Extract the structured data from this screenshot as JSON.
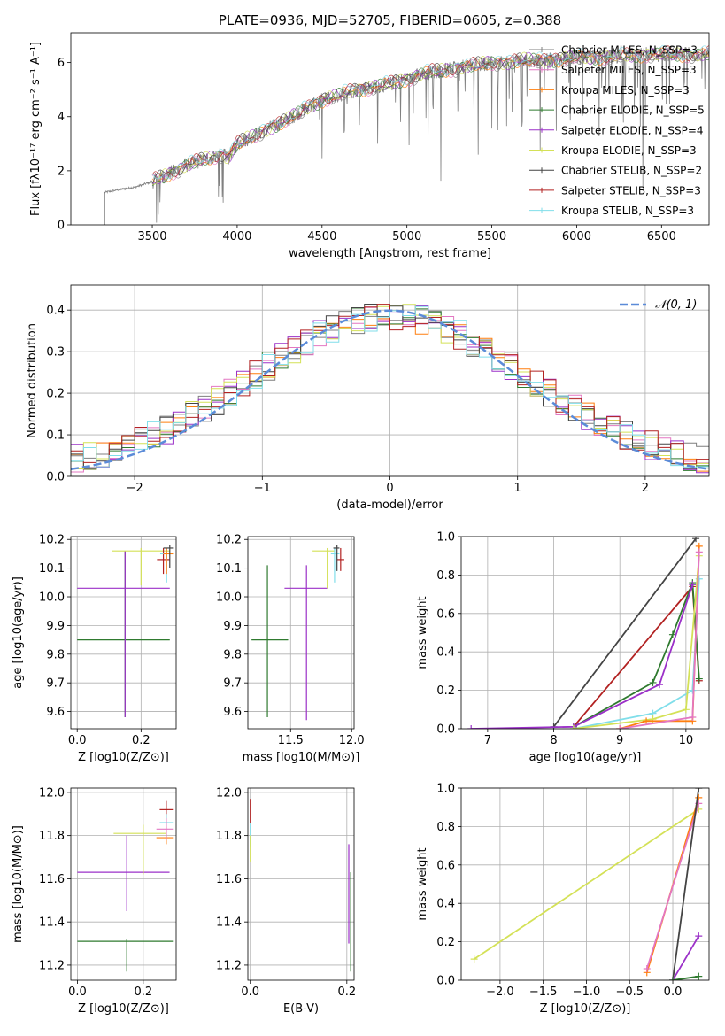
{
  "colors": {
    "Chabrier MILES": "#7f7f7f",
    "Salpeter MILES": "#e377c2",
    "Kroupa MILES": "#ff7f0e",
    "Chabrier ELODIE": "#2f7a2f",
    "Salpeter ELODIE": "#9b30c8",
    "Kroupa ELODIE": "#d4e157",
    "Chabrier STELIB": "#444444",
    "Salpeter STELIB": "#b22222",
    "Kroupa STELIB": "#80deea",
    "normal": "#5b8bd8"
  },
  "chart_data": [
    {
      "type": "line",
      "title": "PLATE=0936, MJD=52705, FIBERID=0605, z=0.388",
      "xlabel": "wavelength [Angstrom, rest frame]",
      "ylabel": "Flux [fλ10⁻¹⁷ erg cm⁻² s⁻¹ A⁻¹]",
      "xlim": [
        3020,
        6780
      ],
      "ylim": [
        0,
        7.1
      ],
      "xticks": [
        3500,
        4000,
        4500,
        5000,
        5500,
        6000,
        6500
      ],
      "yticks": [
        0,
        2,
        4,
        6
      ],
      "legend_position": "right",
      "legend": [
        "Chabrier MILES, N_SSP=3",
        "Salpeter MILES, N_SSP=3",
        "Kroupa MILES, N_SSP=3",
        "Chabrier ELODIE, N_SSP=5",
        "Salpeter ELODIE, N_SSP=4",
        "Kroupa ELODIE, N_SSP=3",
        "Chabrier STELIB, N_SSP=2",
        "Salpeter STELIB, N_SSP=3",
        "Kroupa STELIB, N_SSP=3"
      ],
      "spectrum_start": 3220,
      "continuum": {
        "x": [
          3220,
          3300,
          3400,
          3500,
          3600,
          3700,
          3800,
          3900,
          3950,
          4000,
          4100,
          4200,
          4300,
          4400,
          4500,
          4600,
          4700,
          4800,
          4900,
          5000,
          5100,
          5200,
          5300,
          5400,
          5500,
          5600,
          5700,
          5800,
          5900,
          6000,
          6200,
          6400,
          6600
        ],
        "y": [
          1.2,
          1.3,
          1.4,
          1.6,
          1.9,
          2.2,
          2.4,
          2.6,
          2.5,
          3.0,
          3.3,
          3.6,
          3.9,
          4.3,
          4.6,
          4.8,
          5.0,
          5.1,
          5.2,
          5.4,
          5.6,
          5.7,
          5.8,
          5.9,
          6.0,
          6.0,
          6.1,
          6.1,
          6.1,
          6.2,
          6.2,
          6.3,
          6.3
        ]
      }
    },
    {
      "type": "step",
      "xlabel": "(data-model)/error",
      "ylabel": "Normed distribution",
      "xlim": [
        -2.5,
        2.5
      ],
      "ylim": [
        0,
        0.46
      ],
      "xticks": [
        -2,
        -1,
        0,
        1,
        2
      ],
      "xtick_labels": [
        "−2",
        "−1",
        "0",
        "1",
        "2"
      ],
      "yticks": [
        0,
        0.1,
        0.2,
        0.3,
        0.4
      ],
      "legend": [
        "𝒩(0, 1)"
      ],
      "legend_position": "top-right",
      "curve": "normal(0,1)"
    },
    {
      "type": "scatter",
      "xlabel": "Z [log10(Z/Z⊙)]",
      "ylabel": "age  [log10(age/yr)]",
      "xlim": [
        -0.02,
        0.31
      ],
      "ylim": [
        9.54,
        10.21
      ],
      "xticks": [
        0.0,
        0.2
      ],
      "yticks": [
        9.6,
        9.7,
        9.8,
        9.9,
        10.0,
        10.1,
        10.2
      ],
      "points": [
        {
          "series": "Chabrier ELODIE",
          "x": 0.15,
          "y": 9.85,
          "xerr": [
            0.0,
            0.29
          ],
          "yerr": [
            9.58,
            10.16
          ]
        },
        {
          "series": "Salpeter ELODIE",
          "x": 0.15,
          "y": 10.03,
          "xerr": [
            0.0,
            0.29
          ],
          "yerr": [
            9.58,
            10.16
          ]
        },
        {
          "series": "Kroupa ELODIE",
          "x": 0.2,
          "y": 10.16,
          "xerr": [
            0.11,
            0.29
          ],
          "yerr": [
            10.04,
            10.17
          ]
        },
        {
          "series": "Salpeter STELIB",
          "x": 0.27,
          "y": 10.13,
          "xerr": [
            0.25,
            0.29
          ],
          "yerr": [
            10.08,
            10.17
          ]
        },
        {
          "series": "Kroupa STELIB",
          "x": 0.28,
          "y": 10.15,
          "xerr": [
            0.26,
            0.3
          ],
          "yerr": [
            10.05,
            10.17
          ]
        },
        {
          "series": "Kroupa MILES",
          "x": 0.28,
          "y": 10.15,
          "xerr": [
            0.27,
            0.3
          ],
          "yerr": [
            10.08,
            10.17
          ]
        },
        {
          "series": "Chabrier STELIB",
          "x": 0.29,
          "y": 10.17,
          "xerr": [
            0.27,
            0.3
          ],
          "yerr": [
            10.1,
            10.18
          ]
        }
      ]
    },
    {
      "type": "scatter",
      "xlabel": "mass [log10(M/M⊙)]",
      "ylabel": "",
      "xlim": [
        11.15,
        12.02
      ],
      "ylim": [
        9.54,
        10.21
      ],
      "xticks": [
        11.5,
        12.0
      ],
      "yticks": [
        9.6,
        9.7,
        9.8,
        9.9,
        10.0,
        10.1,
        10.2
      ],
      "points": [
        {
          "series": "Chabrier ELODIE",
          "x": 11.31,
          "y": 9.85,
          "xerr": [
            11.18,
            11.48
          ],
          "yerr": [
            9.58,
            10.11
          ]
        },
        {
          "series": "Salpeter ELODIE",
          "x": 11.63,
          "y": 10.03,
          "xerr": [
            11.45,
            11.8
          ],
          "yerr": [
            9.57,
            10.11
          ]
        },
        {
          "series": "Kroupa ELODIE",
          "x": 11.8,
          "y": 10.16,
          "xerr": [
            11.68,
            11.86
          ],
          "yerr": [
            10.03,
            10.17
          ]
        },
        {
          "series": "Salpeter STELIB",
          "x": 11.91,
          "y": 10.13,
          "xerr": [
            11.88,
            11.94
          ],
          "yerr": [
            10.09,
            10.17
          ]
        },
        {
          "series": "Kroupa STELIB",
          "x": 11.86,
          "y": 10.15,
          "xerr": [
            11.83,
            11.9
          ],
          "yerr": [
            10.05,
            10.17
          ]
        },
        {
          "series": "Chabrier STELIB",
          "x": 11.88,
          "y": 10.17,
          "xerr": [
            11.85,
            11.9
          ],
          "yerr": [
            10.09,
            10.18
          ]
        }
      ]
    },
    {
      "type": "line",
      "xlabel": "age  [log10(age/yr)]",
      "ylabel": "mass weight",
      "xlim": [
        6.6,
        10.35
      ],
      "ylim": [
        0,
        1
      ],
      "xticks": [
        7,
        8,
        9,
        10
      ],
      "yticks": [
        0.0,
        0.2,
        0.4,
        0.6,
        0.8,
        1.0
      ],
      "series": [
        {
          "name": "Chabrier STELIB",
          "x": [
            8.0,
            10.15
          ],
          "y": [
            0.01,
            0.99
          ]
        },
        {
          "name": "Salpeter STELIB",
          "x": [
            8.3,
            10.1,
            10.2
          ],
          "y": [
            0.01,
            0.74,
            0.25
          ]
        },
        {
          "name": "Chabrier ELODIE",
          "x": [
            8.3,
            9.5,
            9.8,
            10.1,
            10.2
          ],
          "y": [
            0.01,
            0.24,
            0.49,
            0.76,
            0.26
          ]
        },
        {
          "name": "Salpeter ELODIE",
          "x": [
            6.75,
            8.3,
            9.6,
            10.1
          ],
          "y": [
            0.0,
            0.01,
            0.23,
            0.75
          ]
        },
        {
          "name": "Kroupa STELIB",
          "x": [
            8.3,
            9.5,
            10.1,
            10.2
          ],
          "y": [
            0.0,
            0.08,
            0.2,
            0.78
          ]
        },
        {
          "name": "Kroupa ELODIE",
          "x": [
            8.3,
            9.5,
            10.0,
            10.2
          ],
          "y": [
            0.0,
            0.05,
            0.1,
            0.9
          ]
        },
        {
          "name": "Kroupa MILES",
          "x": [
            9.0,
            9.4,
            10.1,
            10.2
          ],
          "y": [
            0.0,
            0.04,
            0.04,
            0.95
          ]
        },
        {
          "name": "Salpeter MILES",
          "x": [
            9.0,
            10.1,
            10.2
          ],
          "y": [
            0.0,
            0.06,
            0.92
          ]
        }
      ]
    },
    {
      "type": "scatter",
      "xlabel": "Z [log10(Z/Z⊙)]",
      "ylabel": "mass [log10(M/M⊙)]",
      "xlim": [
        -0.02,
        0.3
      ],
      "ylim": [
        11.13,
        12.02
      ],
      "xticks": [
        0.0,
        0.2
      ],
      "yticks": [
        11.2,
        11.4,
        11.6,
        11.8,
        12.0
      ],
      "points": [
        {
          "series": "Chabrier ELODIE",
          "x": 0.15,
          "y": 11.31,
          "xerr": [
            0.0,
            0.29
          ],
          "yerr": [
            11.17,
            11.32
          ]
        },
        {
          "series": "Salpeter ELODIE",
          "x": 0.15,
          "y": 11.63,
          "xerr": [
            0.0,
            0.28
          ],
          "yerr": [
            11.45,
            11.8
          ]
        },
        {
          "series": "Kroupa ELODIE",
          "x": 0.2,
          "y": 11.81,
          "xerr": [
            0.11,
            0.27
          ],
          "yerr": [
            11.62,
            11.85
          ]
        },
        {
          "series": "Salpeter STELIB",
          "x": 0.27,
          "y": 11.92,
          "xerr": [
            0.25,
            0.29
          ],
          "yerr": [
            11.86,
            11.96
          ]
        },
        {
          "series": "Kroupa STELIB",
          "x": 0.27,
          "y": 11.86,
          "xerr": [
            0.25,
            0.29
          ],
          "yerr": [
            11.8,
            11.9
          ]
        },
        {
          "series": "Kroupa MILES",
          "x": 0.27,
          "y": 11.79,
          "xerr": [
            0.24,
            0.29
          ],
          "yerr": [
            11.76,
            11.84
          ]
        },
        {
          "series": "Salpeter MILES",
          "x": 0.27,
          "y": 11.83,
          "xerr": [
            0.24,
            0.29
          ],
          "yerr": [
            11.78,
            11.88
          ]
        }
      ]
    },
    {
      "type": "scatter",
      "xlabel": "E(B-V)",
      "ylabel": "",
      "xlim": [
        -0.005,
        0.215
      ],
      "ylim": [
        11.13,
        12.02
      ],
      "xticks": [
        0.0,
        0.2
      ],
      "yticks": [
        11.2,
        11.4,
        11.6,
        11.8,
        12.0
      ],
      "points": [
        {
          "series": "Salpeter STELIB",
          "x": 0.0,
          "y": 11.92,
          "xerr": [
            0.0,
            0.0
          ],
          "yerr": [
            11.86,
            11.97
          ]
        },
        {
          "series": "Kroupa STELIB",
          "x": 0.0,
          "y": 11.82,
          "xerr": [
            0.0,
            0.0
          ],
          "yerr": [
            11.75,
            11.86
          ]
        },
        {
          "series": "Kroupa ELODIE",
          "x": 0.0,
          "y": 11.74,
          "xerr": [
            0.0,
            0.0
          ],
          "yerr": [
            11.68,
            11.8
          ]
        },
        {
          "series": "Salpeter ELODIE",
          "x": 0.204,
          "y": 11.52,
          "xerr": [
            0.204,
            0.204
          ],
          "yerr": [
            11.3,
            11.76
          ]
        },
        {
          "series": "Chabrier ELODIE",
          "x": 0.208,
          "y": 11.4,
          "xerr": [
            0.208,
            0.208
          ],
          "yerr": [
            11.17,
            11.63
          ]
        }
      ]
    },
    {
      "type": "line",
      "xlabel": "Z [log10(Z/Z⊙)]",
      "ylabel": "mass weight",
      "xlim": [
        -2.45,
        0.42
      ],
      "ylim": [
        0,
        1
      ],
      "xticks": [
        -2.0,
        -1.5,
        -1.0,
        -0.5,
        0.0
      ],
      "xtick_labels": [
        "−2.0",
        "−1.5",
        "−1.0",
        "−0.5",
        "0.0"
      ],
      "yticks": [
        0.0,
        0.2,
        0.4,
        0.6,
        0.8,
        1.0
      ],
      "series": [
        {
          "name": "Kroupa ELODIE",
          "x": [
            -2.3,
            0.3
          ],
          "y": [
            0.11,
            0.89
          ]
        },
        {
          "name": "Kroupa MILES",
          "x": [
            -0.3,
            0.3
          ],
          "y": [
            0.04,
            0.95
          ]
        },
        {
          "name": "Salpeter MILES",
          "x": [
            -0.3,
            0.3
          ],
          "y": [
            0.06,
            0.92
          ]
        },
        {
          "name": "Chabrier STELIB",
          "x": [
            0.0,
            0.3
          ],
          "y": [
            0.0,
            1.0
          ]
        },
        {
          "name": "Salpeter ELODIE",
          "x": [
            0.0,
            0.3
          ],
          "y": [
            0.0,
            0.23
          ]
        },
        {
          "name": "Chabrier ELODIE",
          "x": [
            0.0,
            0.3
          ],
          "y": [
            0.0,
            0.02
          ]
        }
      ]
    }
  ]
}
